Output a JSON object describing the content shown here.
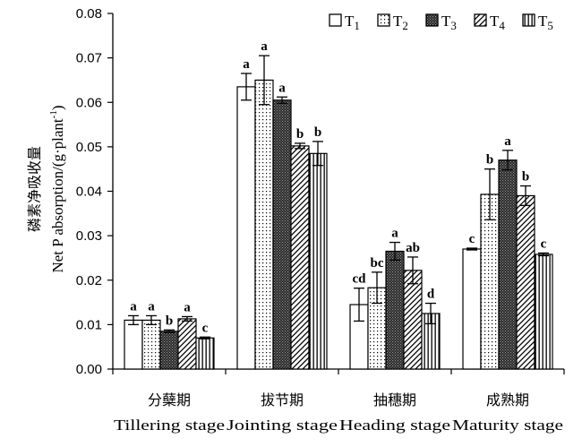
{
  "chart_data": {
    "type": "bar",
    "ylabel_cn": "磷素净吸收量",
    "ylabel_en": "Net P absorption/(g·plant",
    "ylabel_sup": "-1",
    "ylabel_close": ")",
    "ylim": [
      0,
      0.08
    ],
    "yticks": [
      "0.00",
      "0.01",
      "0.02",
      "0.03",
      "0.04",
      "0.05",
      "0.06",
      "0.07",
      "0.08"
    ],
    "grid": false,
    "legend_position": "top-right",
    "categories": [
      {
        "cn": "分蘖期",
        "en": "Tillering stage"
      },
      {
        "cn": "拔节期",
        "en": "Jointing stage"
      },
      {
        "cn": "抽穗期",
        "en": "Heading stage"
      },
      {
        "cn": "成熟期",
        "en": "Maturity stage"
      }
    ],
    "series": [
      {
        "name": "T",
        "sub": "1",
        "pattern": "blank",
        "values": [
          0.011,
          0.0635,
          0.0145,
          0.027
        ],
        "errors": [
          0.001,
          0.003,
          0.0037,
          0.0002
        ],
        "labels": [
          "a",
          "a",
          "cd",
          "c"
        ]
      },
      {
        "name": "T",
        "sub": "2",
        "pattern": "dots",
        "values": [
          0.011,
          0.065,
          0.0183,
          0.0393
        ],
        "errors": [
          0.001,
          0.0055,
          0.0035,
          0.0057
        ],
        "labels": [
          "a",
          "a",
          "bc",
          "b"
        ]
      },
      {
        "name": "T",
        "sub": "3",
        "pattern": "dense",
        "values": [
          0.0085,
          0.0605,
          0.0265,
          0.047
        ],
        "errors": [
          0.0003,
          0.0007,
          0.002,
          0.0022
        ],
        "labels": [
          "b",
          "a",
          "a",
          "a"
        ]
      },
      {
        "name": "T",
        "sub": "4",
        "pattern": "diagonal",
        "values": [
          0.0113,
          0.0502,
          0.0222,
          0.039
        ],
        "errors": [
          0.0005,
          0.0006,
          0.003,
          0.0022
        ],
        "labels": [
          "a",
          "b",
          "ab",
          "b"
        ]
      },
      {
        "name": "T",
        "sub": "5",
        "pattern": "vertical",
        "values": [
          0.007,
          0.0485,
          0.0125,
          0.0258
        ],
        "errors": [
          0.0002,
          0.0027,
          0.0023,
          0.0003
        ],
        "labels": [
          "c",
          "b",
          "d",
          "c"
        ]
      }
    ]
  }
}
